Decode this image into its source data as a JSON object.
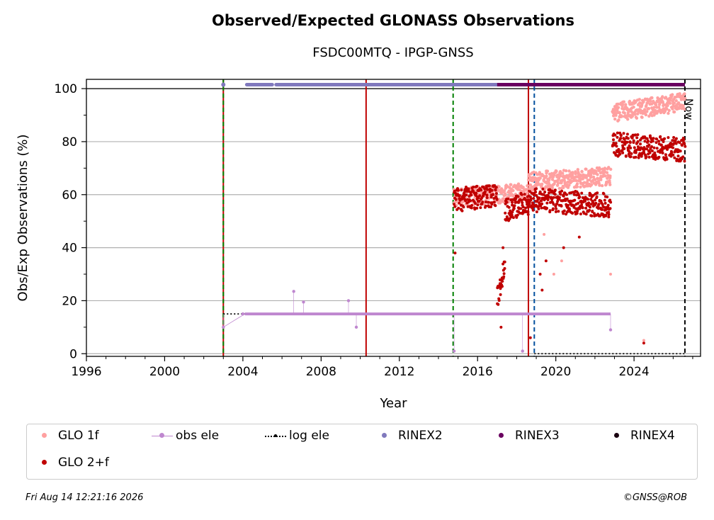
{
  "chart_data": {
    "type": "scatter",
    "title": "Observed/Expected GLONASS Observations",
    "subtitle": "FSDC00MTQ - IPGP-GNSS",
    "xlabel": "Year",
    "ylabel": "Obs/Exp Observations (%)",
    "xlim": [
      1996,
      2027.4
    ],
    "ylim": [
      -1,
      103.5
    ],
    "xticks": [
      "1996",
      "2000",
      "2004",
      "2008",
      "2012",
      "2016",
      "2020",
      "2024"
    ],
    "yticks": [
      "0",
      "20",
      "40",
      "60",
      "80",
      "100"
    ],
    "grid": "horizontal",
    "now_label": "Now",
    "legend_placement": "bottom",
    "series": [
      {
        "name": "GLO 1f",
        "color": "#ffa0a0",
        "segments": [
          {
            "x": [
              2014.8,
              2018.6
            ],
            "y": [
              59,
              61
            ]
          },
          {
            "x": [
              2018.6,
              2022.8
            ],
            "y": [
              65,
              67
            ]
          },
          {
            "x": [
              2022.9,
              2026.6
            ],
            "y": [
              91,
              95
            ]
          }
        ]
      },
      {
        "name": "GLO 2+f",
        "color": "#c00000",
        "segments": [
          {
            "x": [
              2014.8,
              2017.0
            ],
            "y": [
              58,
              60
            ]
          },
          {
            "x": [
              2017.0,
              2017.4
            ],
            "y": [
              20,
              35
            ]
          },
          {
            "x": [
              2017.4,
              2018.6
            ],
            "y": [
              54,
              57
            ]
          },
          {
            "x": [
              2018.6,
              2022.8
            ],
            "y": [
              58,
              56
            ]
          },
          {
            "x": [
              2022.9,
              2026.6
            ],
            "y": [
              79,
              77
            ]
          }
        ]
      },
      {
        "name": "obs ele",
        "color": "#bf87cf",
        "points": [
          [
            2003.0,
            10
          ],
          [
            2004.0,
            15
          ],
          [
            2006.6,
            23.5
          ],
          [
            2007.1,
            19.5
          ],
          [
            2009.4,
            20
          ],
          [
            2009.8,
            10
          ],
          [
            2014.8,
            1
          ],
          [
            2018.3,
            1
          ],
          [
            2022.8,
            9
          ]
        ],
        "line": {
          "x": [
            2004.1,
            2022.8
          ],
          "y": [
            15,
            15
          ]
        }
      },
      {
        "name": "log ele",
        "color": "#000000",
        "segments": [
          {
            "x": [
              2003.0,
              2018.9
            ],
            "y": [
              15,
              15
            ]
          },
          {
            "x": [
              2018.9,
              2026.6
            ],
            "y": [
              0,
              0
            ]
          }
        ]
      },
      {
        "name": "RINEX2",
        "color": "#8079bd",
        "x": [
          2003.0,
          2017.0
        ],
        "y": 101.5
      },
      {
        "name": "RINEX3",
        "color": "#6a0060",
        "x": [
          2017.0,
          2026.6
        ],
        "y": 101.5
      },
      {
        "name": "RINEX4",
        "color": "#1a0010",
        "x": [],
        "y": 101.5
      }
    ],
    "vlines": [
      {
        "x": 2003.0,
        "color": "#c00000",
        "style": "solid"
      },
      {
        "x": 2003.0,
        "color": "#008000",
        "style": "dashed"
      },
      {
        "x": 2010.3,
        "color": "#c00000",
        "style": "solid"
      },
      {
        "x": 2014.75,
        "color": "#008000",
        "style": "dashed"
      },
      {
        "x": 2018.6,
        "color": "#c00000",
        "style": "solid"
      },
      {
        "x": 2018.9,
        "color": "#00509e",
        "style": "dashed"
      },
      {
        "x": 2026.6,
        "color": "#000000",
        "style": "dashed"
      }
    ],
    "legend": [
      {
        "label": "GLO 1f",
        "kind": "dot",
        "color": "#ffa0a0"
      },
      {
        "label": "obs ele",
        "kind": "line-dot",
        "color": "#bf87cf"
      },
      {
        "label": "log ele",
        "kind": "dotted",
        "color": "#000000"
      },
      {
        "label": "RINEX2",
        "kind": "dot",
        "color": "#8079bd"
      },
      {
        "label": "RINEX3",
        "kind": "dot",
        "color": "#6a0060"
      },
      {
        "label": "RINEX4",
        "kind": "dot",
        "color": "#1a0010"
      },
      {
        "label": "GLO 2+f",
        "kind": "dot",
        "color": "#c00000"
      }
    ]
  },
  "footer": {
    "timestamp": "Fri Aug 14 12:21:16 2026",
    "credit": "©GNSS@ROB"
  }
}
